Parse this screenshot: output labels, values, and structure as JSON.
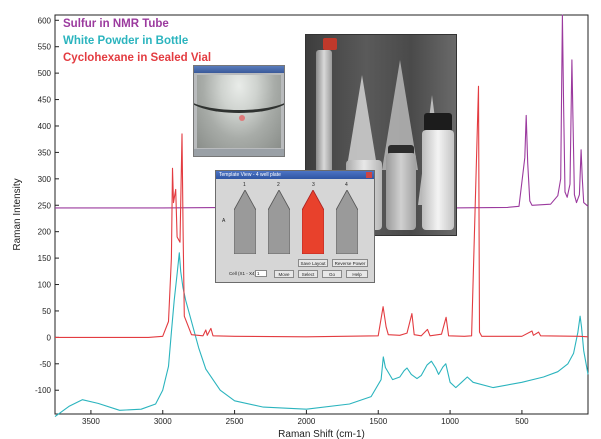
{
  "chart_data": {
    "type": "line",
    "xlabel": "Raman Shift (cm-1)",
    "ylabel": "Raman Intensity",
    "xlim": [
      3750,
      40
    ],
    "ylim": [
      -145,
      610
    ],
    "x_ticks": [
      3500,
      3000,
      2500,
      2000,
      1500,
      1000,
      500
    ],
    "y_ticks": [
      600,
      550,
      500,
      450,
      400,
      350,
      300,
      250,
      200,
      150,
      100,
      50,
      0,
      -50,
      -100
    ],
    "grid": false,
    "legend_position": "top-left",
    "series": [
      {
        "name": "Sulfur in NMR Tube",
        "color": "#9b3a9e",
        "points": [
          [
            3750,
            245
          ],
          [
            3000,
            245
          ],
          [
            2500,
            246
          ],
          [
            2000,
            245
          ],
          [
            1500,
            246
          ],
          [
            1000,
            245
          ],
          [
            600,
            246
          ],
          [
            520,
            248
          ],
          [
            480,
            340
          ],
          [
            470,
            420
          ],
          [
            460,
            330
          ],
          [
            445,
            258
          ],
          [
            430,
            250
          ],
          [
            300,
            252
          ],
          [
            250,
            268
          ],
          [
            230,
            300
          ],
          [
            218,
            610
          ],
          [
            210,
            440
          ],
          [
            200,
            275
          ],
          [
            185,
            265
          ],
          [
            165,
            290
          ],
          [
            152,
            525
          ],
          [
            145,
            420
          ],
          [
            135,
            270
          ],
          [
            120,
            255
          ],
          [
            100,
            270
          ],
          [
            88,
            355
          ],
          [
            80,
            300
          ],
          [
            70,
            255
          ],
          [
            40,
            248
          ]
        ]
      },
      {
        "name": "White Powder in Bottle",
        "color": "#2bb4be",
        "points": [
          [
            3750,
            -150
          ],
          [
            3650,
            -130
          ],
          [
            3560,
            -118
          ],
          [
            3450,
            -125
          ],
          [
            3300,
            -138
          ],
          [
            3150,
            -136
          ],
          [
            3050,
            -126
          ],
          [
            3000,
            -100
          ],
          [
            2960,
            -55
          ],
          [
            2940,
            10
          ],
          [
            2920,
            70
          ],
          [
            2900,
            120
          ],
          [
            2885,
            160
          ],
          [
            2875,
            125
          ],
          [
            2860,
            95
          ],
          [
            2840,
            70
          ],
          [
            2800,
            30
          ],
          [
            2750,
            -20
          ],
          [
            2700,
            -60
          ],
          [
            2600,
            -100
          ],
          [
            2500,
            -120
          ],
          [
            2300,
            -132
          ],
          [
            2000,
            -136
          ],
          [
            1700,
            -126
          ],
          [
            1550,
            -112
          ],
          [
            1480,
            -80
          ],
          [
            1465,
            -37
          ],
          [
            1450,
            -57
          ],
          [
            1400,
            -80
          ],
          [
            1350,
            -75
          ],
          [
            1320,
            -63
          ],
          [
            1300,
            -58
          ],
          [
            1270,
            -70
          ],
          [
            1230,
            -78
          ],
          [
            1200,
            -72
          ],
          [
            1160,
            -52
          ],
          [
            1130,
            -45
          ],
          [
            1100,
            -58
          ],
          [
            1080,
            -70
          ],
          [
            1050,
            -56
          ],
          [
            1030,
            -50
          ],
          [
            1000,
            -85
          ],
          [
            960,
            -95
          ],
          [
            920,
            -85
          ],
          [
            880,
            -75
          ],
          [
            840,
            -85
          ],
          [
            700,
            -95
          ],
          [
            500,
            -85
          ],
          [
            350,
            -75
          ],
          [
            250,
            -65
          ],
          [
            180,
            -50
          ],
          [
            140,
            -30
          ],
          [
            110,
            10
          ],
          [
            95,
            40
          ],
          [
            85,
            20
          ],
          [
            70,
            -25
          ],
          [
            40,
            -70
          ]
        ]
      },
      {
        "name": "Cyclohexane in Sealed Vial",
        "color": "#e33c41",
        "points": [
          [
            3750,
            0
          ],
          [
            3100,
            0
          ],
          [
            3000,
            2
          ],
          [
            2960,
            30
          ],
          [
            2940,
            150
          ],
          [
            2932,
            320
          ],
          [
            2925,
            255
          ],
          [
            2910,
            280
          ],
          [
            2900,
            190
          ],
          [
            2880,
            180
          ],
          [
            2866,
            385
          ],
          [
            2858,
            200
          ],
          [
            2850,
            40
          ],
          [
            2800,
            5
          ],
          [
            2720,
            3
          ],
          [
            2700,
            14
          ],
          [
            2690,
            4
          ],
          [
            2665,
            17
          ],
          [
            2650,
            3
          ],
          [
            2500,
            2
          ],
          [
            2000,
            1
          ],
          [
            1500,
            3
          ],
          [
            1466,
            58
          ],
          [
            1445,
            20
          ],
          [
            1430,
            5
          ],
          [
            1350,
            4
          ],
          [
            1300,
            8
          ],
          [
            1266,
            45
          ],
          [
            1250,
            5
          ],
          [
            1200,
            3
          ],
          [
            1157,
            15
          ],
          [
            1140,
            3
          ],
          [
            1060,
            6
          ],
          [
            1028,
            38
          ],
          [
            1010,
            3
          ],
          [
            900,
            2
          ],
          [
            850,
            3
          ],
          [
            802,
            475
          ],
          [
            795,
            10
          ],
          [
            780,
            2
          ],
          [
            500,
            2
          ],
          [
            430,
            12
          ],
          [
            420,
            4
          ],
          [
            384,
            10
          ],
          [
            370,
            3
          ],
          [
            100,
            2
          ],
          [
            40,
            1
          ]
        ]
      }
    ]
  },
  "template_window": {
    "title": "Template View - 4 well plate",
    "columns": [
      "1",
      "2",
      "3",
      "4"
    ],
    "row": "A",
    "cell_label": "Cell (X1 - X4)",
    "cell_value": "1",
    "buttons": [
      "Save Layout",
      "Reverse Power",
      "Move",
      "Select",
      "Go",
      "Help"
    ],
    "selected_well_color": "#e8412c",
    "well_color": "#9a9a9a"
  }
}
